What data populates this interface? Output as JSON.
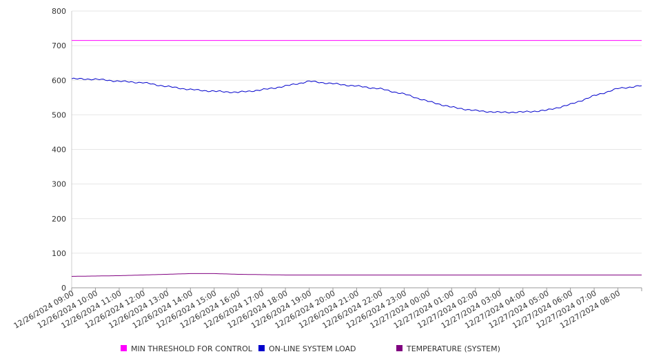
{
  "chart_data": {
    "type": "line",
    "title": "",
    "xlabel": "",
    "ylabel": "",
    "ylim": [
      0,
      800
    ],
    "y_ticks": [
      0,
      100,
      200,
      300,
      400,
      500,
      600,
      700,
      800
    ],
    "x_tick_labels": [
      "12/26/2024 09:00",
      "12/26/2024 10:00",
      "12/26/2024 11:00",
      "12/26/2024 12:00",
      "12/26/2024 13:00",
      "12/26/2024 14:00",
      "12/26/2024 15:00",
      "12/26/2024 16:00",
      "12/26/2024 17:00",
      "12/26/2024 18:00",
      "12/26/2024 19:00",
      "12/26/2024 20:00",
      "12/26/2024 21:00",
      "12/26/2024 22:00",
      "12/26/2024 23:00",
      "12/27/2024 00:00",
      "12/27/2024 01:00",
      "12/27/2024 02:00",
      "12/27/2024 03:00",
      "12/27/2024 04:00",
      "12/27/2024 05:00",
      "12/27/2024 06:00",
      "12/27/2024 07:00",
      "12/27/2024 08:00"
    ],
    "grid": true,
    "legend_position": "bottom",
    "series": [
      {
        "name": "MIN THRESHOLD FOR CONTROL",
        "color": "#ff00ff",
        "values": [
          715,
          715,
          715,
          715,
          715,
          715,
          715,
          715,
          715,
          715,
          715,
          715,
          715,
          715,
          715,
          715,
          715,
          715,
          715,
          715,
          715,
          715,
          715,
          715,
          715
        ]
      },
      {
        "name": "ON-LINE SYSTEM LOAD",
        "color": "#0000cc",
        "values": [
          604,
          603,
          597,
          593,
          582,
          573,
          568,
          565,
          572,
          583,
          597,
          590,
          583,
          575,
          560,
          539,
          522,
          512,
          507,
          508,
          513,
          530,
          555,
          576,
          584
        ]
      },
      {
        "name": "TEMPERATURE (SYSTEM)",
        "color": "#800080",
        "values": [
          33,
          34,
          35,
          37,
          39,
          41,
          41,
          39,
          38,
          37,
          37,
          37,
          37,
          37,
          37,
          37,
          37,
          37,
          37,
          37,
          37,
          37,
          37,
          37,
          37
        ]
      }
    ]
  }
}
